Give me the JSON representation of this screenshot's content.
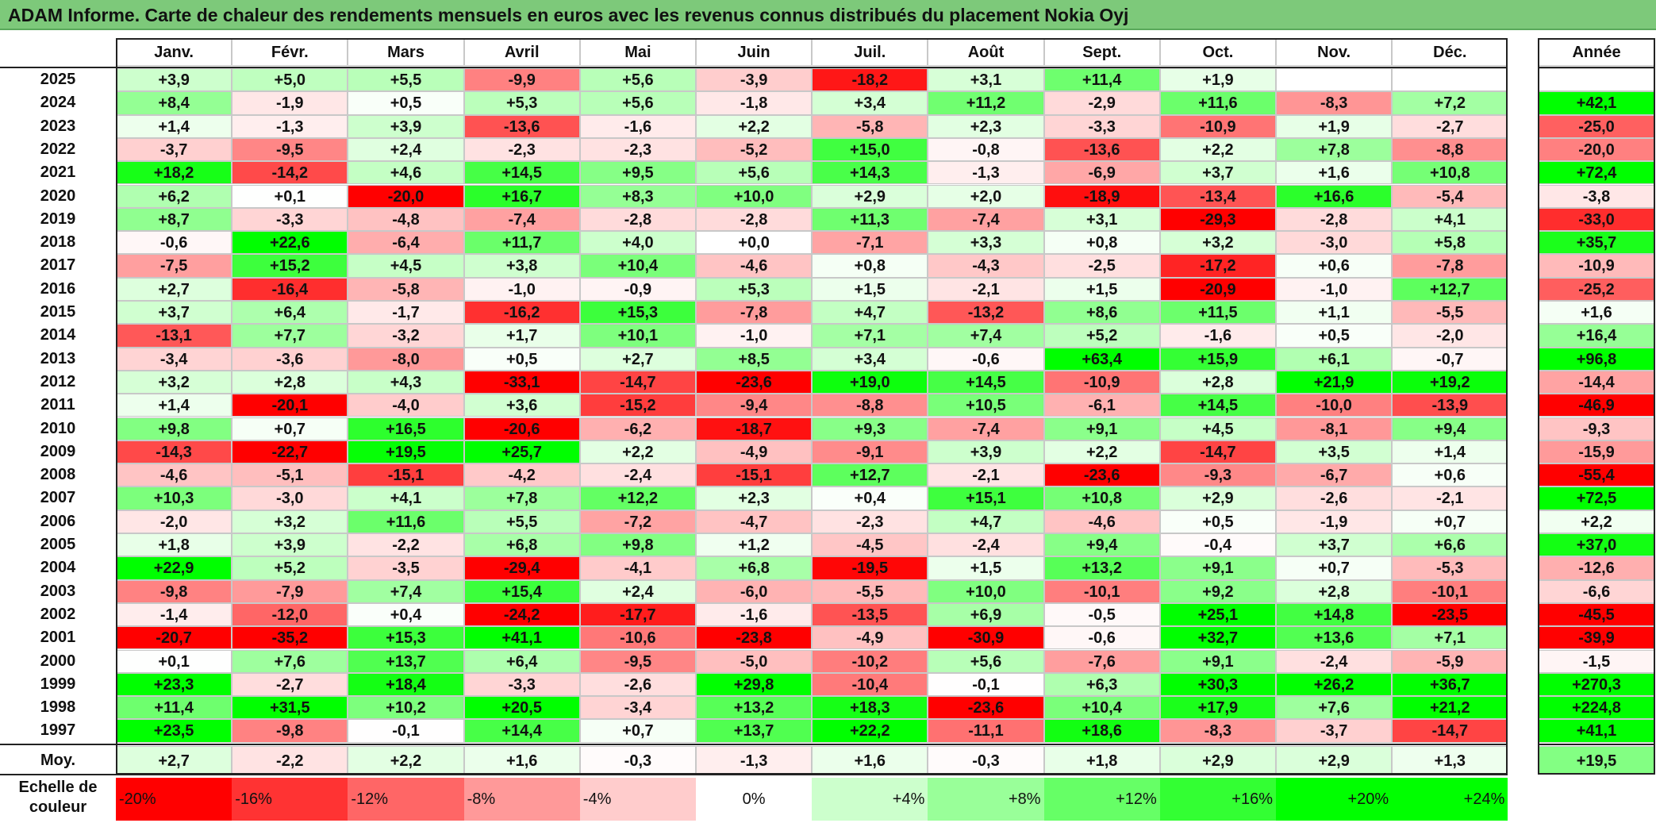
{
  "title": "ADAM Informe. Carte de chaleur des rendements mensuels en euros avec les revenus connus distribués du placement Nokia Oyj",
  "chart_data": {
    "type": "heatmap",
    "title": "ADAM Informe. Carte de chaleur des rendements mensuels en euros avec les revenus connus distribués du placement Nokia Oyj",
    "columns": [
      "Janv.",
      "Févr.",
      "Mars",
      "Avril",
      "Mai",
      "Juin",
      "Juil.",
      "Août",
      "Sept.",
      "Oct.",
      "Nov.",
      "Déc."
    ],
    "year_column_label": "Année",
    "rows": [
      {
        "year": "2025",
        "months": [
          "+3,9",
          "+5,0",
          "+5,5",
          "-9,9",
          "+5,6",
          "-3,9",
          "-18,2",
          "+3,1",
          "+11,4",
          "+1,9",
          "",
          ""
        ],
        "annual": ""
      },
      {
        "year": "2024",
        "months": [
          "+8,4",
          "-1,9",
          "+0,5",
          "+5,3",
          "+5,6",
          "-1,8",
          "+3,4",
          "+11,2",
          "-2,9",
          "+11,6",
          "-8,3",
          "+7,2"
        ],
        "annual": "+42,1"
      },
      {
        "year": "2023",
        "months": [
          "+1,4",
          "-1,3",
          "+3,9",
          "-13,6",
          "-1,6",
          "+2,2",
          "-5,8",
          "+2,3",
          "-3,3",
          "-10,9",
          "+1,9",
          "-2,7"
        ],
        "annual": "-25,0"
      },
      {
        "year": "2022",
        "months": [
          "-3,7",
          "-9,5",
          "+2,4",
          "-2,3",
          "-2,3",
          "-5,2",
          "+15,0",
          "-0,8",
          "-13,6",
          "+2,2",
          "+7,8",
          "-8,8"
        ],
        "annual": "-20,0"
      },
      {
        "year": "2021",
        "months": [
          "+18,2",
          "-14,2",
          "+4,6",
          "+14,5",
          "+9,5",
          "+5,6",
          "+14,3",
          "-1,3",
          "-6,9",
          "+3,7",
          "+1,6",
          "+10,8"
        ],
        "annual": "+72,4"
      },
      {
        "year": "2020",
        "months": [
          "+6,2",
          "+0,1",
          "-20,0",
          "+16,7",
          "+8,3",
          "+10,0",
          "+2,9",
          "+2,0",
          "-18,9",
          "-13,4",
          "+16,6",
          "-5,4"
        ],
        "annual": "-3,8"
      },
      {
        "year": "2019",
        "months": [
          "+8,7",
          "-3,3",
          "-4,8",
          "-7,4",
          "-2,8",
          "-2,8",
          "+11,3",
          "-7,4",
          "+3,1",
          "-29,3",
          "-2,8",
          "+4,1"
        ],
        "annual": "-33,0"
      },
      {
        "year": "2018",
        "months": [
          "-0,6",
          "+22,6",
          "-6,4",
          "+11,7",
          "+4,0",
          "+0,0",
          "-7,1",
          "+3,3",
          "+0,8",
          "+3,2",
          "-3,0",
          "+5,8"
        ],
        "annual": "+35,7"
      },
      {
        "year": "2017",
        "months": [
          "-7,5",
          "+15,2",
          "+4,5",
          "+3,8",
          "+10,4",
          "-4,6",
          "+0,8",
          "-4,3",
          "-2,5",
          "-17,2",
          "+0,6",
          "-7,8"
        ],
        "annual": "-10,9"
      },
      {
        "year": "2016",
        "months": [
          "+2,7",
          "-16,4",
          "-5,8",
          "-1,0",
          "-0,9",
          "+5,3",
          "+1,5",
          "-2,1",
          "+1,5",
          "-20,9",
          "-1,0",
          "+12,7"
        ],
        "annual": "-25,2"
      },
      {
        "year": "2015",
        "months": [
          "+3,7",
          "+6,4",
          "-1,7",
          "-16,2",
          "+15,3",
          "-7,8",
          "+4,7",
          "-13,2",
          "+8,6",
          "+11,5",
          "+1,1",
          "-5,5"
        ],
        "annual": "+1,6"
      },
      {
        "year": "2014",
        "months": [
          "-13,1",
          "+7,7",
          "-3,2",
          "+1,7",
          "+10,1",
          "-1,0",
          "+7,1",
          "+7,4",
          "+5,2",
          "-1,6",
          "+0,5",
          "-2,0"
        ],
        "annual": "+16,4"
      },
      {
        "year": "2013",
        "months": [
          "-3,4",
          "-3,6",
          "-8,0",
          "+0,5",
          "+2,7",
          "+8,5",
          "+3,4",
          "-0,6",
          "+63,4",
          "+15,9",
          "+6,1",
          "-0,7"
        ],
        "annual": "+96,8"
      },
      {
        "year": "2012",
        "months": [
          "+3,2",
          "+2,8",
          "+4,3",
          "-33,1",
          "-14,7",
          "-23,6",
          "+19,0",
          "+14,5",
          "-10,9",
          "+2,8",
          "+21,9",
          "+19,2"
        ],
        "annual": "-14,4"
      },
      {
        "year": "2011",
        "months": [
          "+1,4",
          "-20,1",
          "-4,0",
          "+3,6",
          "-15,2",
          "-9,4",
          "-8,8",
          "+10,5",
          "-6,1",
          "+14,5",
          "-10,0",
          "-13,9"
        ],
        "annual": "-46,9"
      },
      {
        "year": "2010",
        "months": [
          "+9,8",
          "+0,7",
          "+16,5",
          "-20,6",
          "-6,2",
          "-18,7",
          "+9,3",
          "-7,4",
          "+9,1",
          "+4,5",
          "-8,1",
          "+9,4"
        ],
        "annual": "-9,3"
      },
      {
        "year": "2009",
        "months": [
          "-14,3",
          "-22,7",
          "+19,5",
          "+25,7",
          "+2,2",
          "-4,9",
          "-9,1",
          "+3,9",
          "+2,2",
          "-14,7",
          "+3,5",
          "+1,4"
        ],
        "annual": "-15,9"
      },
      {
        "year": "2008",
        "months": [
          "-4,6",
          "-5,1",
          "-15,1",
          "-4,2",
          "-2,4",
          "-15,1",
          "+12,7",
          "-2,1",
          "-23,6",
          "-9,3",
          "-6,7",
          "+0,6"
        ],
        "annual": "-55,4"
      },
      {
        "year": "2007",
        "months": [
          "+10,3",
          "-3,0",
          "+4,1",
          "+7,8",
          "+12,2",
          "+2,3",
          "+0,4",
          "+15,1",
          "+10,8",
          "+2,9",
          "-2,6",
          "-2,1"
        ],
        "annual": "+72,5"
      },
      {
        "year": "2006",
        "months": [
          "-2,0",
          "+3,2",
          "+11,6",
          "+5,5",
          "-7,2",
          "-4,7",
          "-2,3",
          "+4,7",
          "-4,6",
          "+0,5",
          "-1,9",
          "+0,7"
        ],
        "annual": "+2,2"
      },
      {
        "year": "2005",
        "months": [
          "+1,8",
          "+3,9",
          "-2,2",
          "+6,8",
          "+9,8",
          "+1,2",
          "-4,5",
          "-2,4",
          "+9,4",
          "-0,4",
          "+3,7",
          "+6,6"
        ],
        "annual": "+37,0"
      },
      {
        "year": "2004",
        "months": [
          "+22,9",
          "+5,2",
          "-3,5",
          "-29,4",
          "-4,1",
          "+6,8",
          "-19,5",
          "+1,5",
          "+13,2",
          "+9,1",
          "+0,7",
          "-5,3"
        ],
        "annual": "-12,6"
      },
      {
        "year": "2003",
        "months": [
          "-9,8",
          "-7,9",
          "+7,4",
          "+15,4",
          "+2,4",
          "-6,0",
          "-5,5",
          "+10,0",
          "-10,1",
          "+9,2",
          "+2,8",
          "-10,1"
        ],
        "annual": "-6,6"
      },
      {
        "year": "2002",
        "months": [
          "-1,4",
          "-12,0",
          "+0,4",
          "-24,2",
          "-17,7",
          "-1,6",
          "-13,5",
          "+6,9",
          "-0,5",
          "+25,1",
          "+14,8",
          "-23,5"
        ],
        "annual": "-45,5"
      },
      {
        "year": "2001",
        "months": [
          "-20,7",
          "-35,2",
          "+15,3",
          "+41,1",
          "-10,6",
          "-23,8",
          "-4,9",
          "-30,9",
          "-0,6",
          "+32,7",
          "+13,6",
          "+7,1"
        ],
        "annual": "-39,9"
      },
      {
        "year": "2000",
        "months": [
          "+0,1",
          "+7,6",
          "+13,7",
          "+6,4",
          "-9,5",
          "-5,0",
          "-10,2",
          "+5,6",
          "-7,6",
          "+9,1",
          "-2,4",
          "-5,9"
        ],
        "annual": "-1,5"
      },
      {
        "year": "1999",
        "months": [
          "+23,3",
          "-2,7",
          "+18,4",
          "-3,3",
          "-2,6",
          "+29,8",
          "-10,4",
          "-0,1",
          "+6,3",
          "+30,3",
          "+26,2",
          "+36,7"
        ],
        "annual": "+270,3"
      },
      {
        "year": "1998",
        "months": [
          "+11,4",
          "+31,5",
          "+10,2",
          "+20,5",
          "-3,4",
          "+13,2",
          "+18,3",
          "-23,6",
          "+10,4",
          "+17,9",
          "+7,6",
          "+21,2"
        ],
        "annual": "+224,8"
      },
      {
        "year": "1997",
        "months": [
          "+23,5",
          "-9,8",
          "-0,1",
          "+14,4",
          "+0,7",
          "+13,7",
          "+22,2",
          "-11,1",
          "+18,6",
          "-8,3",
          "-3,7",
          "-14,7"
        ],
        "annual": "+41,1"
      }
    ],
    "average": {
      "label": "Moy.",
      "months": [
        "+2,7",
        "-2,2",
        "+2,2",
        "+1,6",
        "-0,3",
        "-1,3",
        "+1,6",
        "-0,3",
        "+1,8",
        "+2,9",
        "+2,9",
        "+1,3"
      ],
      "annual": "+19,5"
    },
    "scale": {
      "label": "Echelle de couleur",
      "ticks": [
        "-20%",
        "-16%",
        "-12%",
        "-8%",
        "-4%",
        "0%",
        "+4%",
        "+8%",
        "+12%",
        "+16%",
        "+20%",
        "+24%"
      ],
      "colors": [
        "#ff0000",
        "#ff3333",
        "#ff6666",
        "#ff9999",
        "#ffcccc",
        "#ffffff",
        "#ccffcc",
        "#99ff99",
        "#66ff66",
        "#33ff33",
        "#00ff00",
        "#00ff00"
      ]
    }
  }
}
